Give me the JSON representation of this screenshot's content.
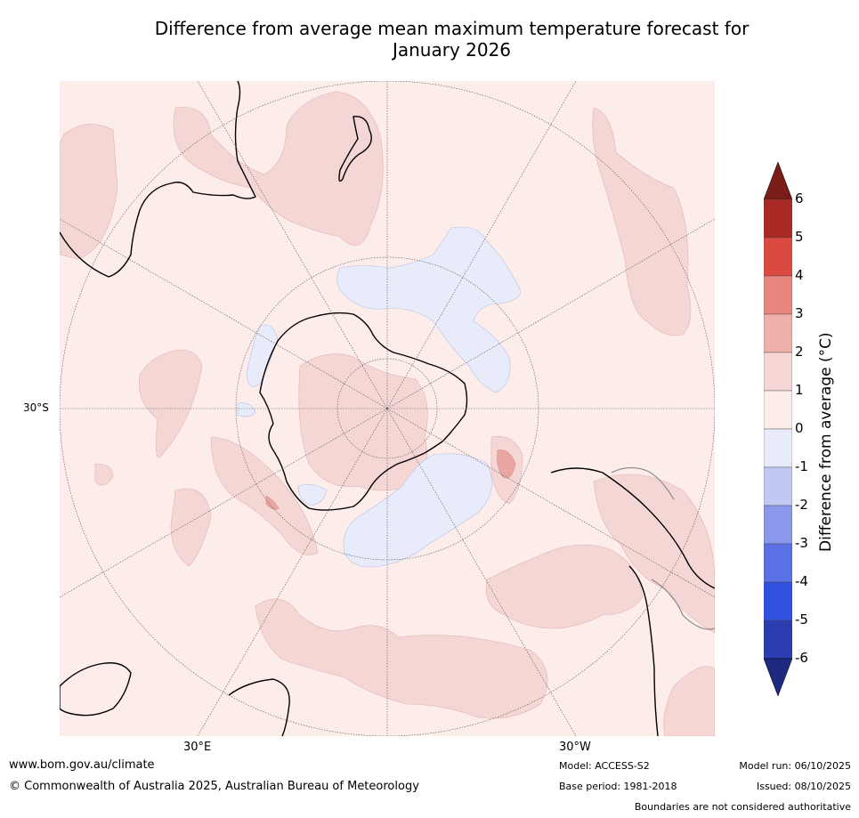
{
  "title_line1": "Difference from average mean maximum temperature forecast for",
  "title_line2": "January 2026",
  "map": {
    "lat_label": "30°S",
    "lon_labels": {
      "east": "30°E",
      "west": "30°W"
    },
    "colors": {
      "background": "#fcecea",
      "light_red": "#f4d6d4",
      "mid_red": "#eaa6a2",
      "light_blue": "#e8ecfa",
      "land": "#000000",
      "grid": "#555555"
    }
  },
  "colorbar": {
    "title": "Difference from average (°C)",
    "ticks": [
      "6",
      "5",
      "4",
      "3",
      "2",
      "1",
      "0",
      "-1",
      "-2",
      "-3",
      "-4",
      "-5",
      "-6"
    ],
    "colors": [
      "#7a1c18",
      "#a92a24",
      "#db4a40",
      "#e8857c",
      "#eeb1aa",
      "#f4d6d4",
      "#fcecea",
      "#e8ecfa",
      "#c2c8f2",
      "#8a98ec",
      "#5c70e6",
      "#3050e0",
      "#2a3cb0",
      "#1e2a80"
    ]
  },
  "footer": {
    "website": "www.bom.gov.au/climate",
    "copyright": "© Commonwealth of Australia 2025, Australian Bureau of Meteorology",
    "model": "Model: ACCESS-S2",
    "base_period": "Base period: 1981-2018",
    "model_run": "Model run: 06/10/2025",
    "issued": "Issued: 08/10/2025",
    "disclaimer": "Boundaries are not considered authoritative"
  }
}
